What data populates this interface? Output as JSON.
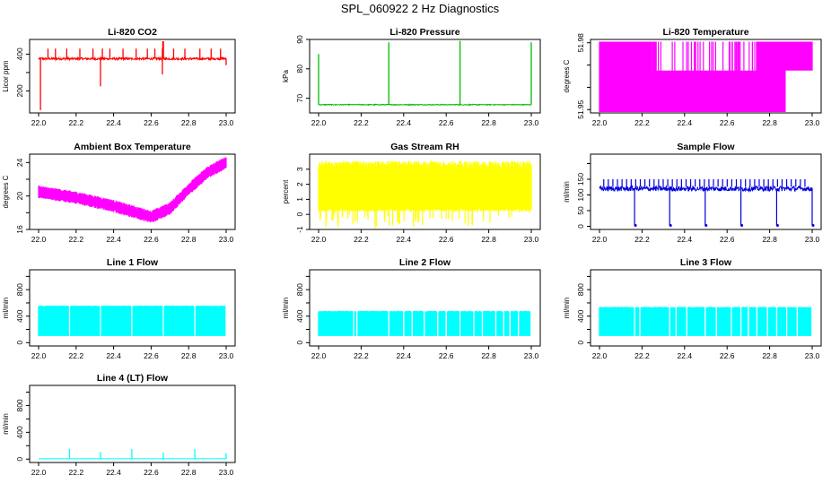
{
  "figure": {
    "title": "SPL_060922  2 Hz Diagnostics"
  },
  "chart_data": [
    {
      "type": "line",
      "title": "Li-820 CO2",
      "ylabel": "Licor ppm",
      "color": "#ff0000",
      "xlim": [
        22.0,
        23.0
      ],
      "ylim": [
        80,
        480
      ],
      "xticks": [
        "22.0",
        "22.2",
        "22.4",
        "22.6",
        "22.8",
        "23.0"
      ],
      "yticks": [
        {
          "value": 200,
          "label": "200"
        },
        {
          "value": 300,
          "label": "300"
        },
        {
          "value": 400,
          "label": "400"
        }
      ],
      "yticks_labeled": [
        "200",
        "400"
      ],
      "pattern": {
        "base": 375,
        "noise": 6,
        "spikes_up": [
          22.05,
          22.09,
          22.15,
          22.22,
          22.29,
          22.34,
          22.38,
          22.45,
          22.52,
          22.58,
          22.62,
          22.66,
          22.72,
          22.78,
          22.86,
          22.92,
          22.97
        ],
        "spike_up_to": 430,
        "spikes_down": [
          22.01,
          22.33,
          22.66,
          23.0
        ],
        "spike_down_to": [
          95,
          225,
          290,
          340
        ],
        "big_spike": {
          "x": 22.664,
          "to": 470
        }
      }
    },
    {
      "type": "line",
      "title": "Li-820 Pressure",
      "ylabel": "kPa",
      "color": "#00bb00",
      "xlim": [
        22.0,
        23.0
      ],
      "ylim": [
        65,
        90
      ],
      "xticks": [
        "22.0",
        "22.2",
        "22.4",
        "22.6",
        "22.8",
        "23.0"
      ],
      "yticks": [
        {
          "value": 70,
          "label": "70"
        },
        {
          "value": 80,
          "label": "80"
        },
        {
          "value": 90,
          "label": "90"
        }
      ],
      "pattern": {
        "base": 67.8,
        "noise": 0.15,
        "spikes_up": [
          22.0,
          22.33,
          22.665,
          23.0
        ],
        "spike_up_to": [
          85,
          89,
          89.5,
          89
        ]
      }
    },
    {
      "type": "line",
      "title": "Li-820 Temperature",
      "ylabel": "degrees C",
      "color": "#ff00ff",
      "xlim": [
        22.0,
        23.0
      ],
      "ylim": [
        51.9485,
        51.9815
      ],
      "xticks": [
        "22.0",
        "22.2",
        "22.4",
        "22.6",
        "22.8",
        "23.0"
      ],
      "yticks": [
        {
          "value": 51.95,
          "label": "51.95"
        },
        {
          "value": 51.96,
          "label": "51.96"
        },
        {
          "value": 51.97,
          "label": "51.97"
        },
        {
          "value": 51.98,
          "label": "51.98"
        }
      ],
      "yticks_labeled": [
        "51.95",
        "51.98"
      ],
      "levels": [
        51.9486,
        51.9675,
        51.9805
      ]
    },
    {
      "type": "line",
      "title": "Ambient Box Temperature",
      "ylabel": "degrees C",
      "color": "#ff00ff",
      "xlim": [
        22.0,
        23.0
      ],
      "ylim": [
        16,
        25
      ],
      "xticks": [
        "22.0",
        "22.2",
        "22.4",
        "22.6",
        "22.8",
        "23.0"
      ],
      "yticks": [
        {
          "value": 16,
          "label": "16"
        },
        {
          "value": 18,
          "label": "18"
        },
        {
          "value": 20,
          "label": "20"
        },
        {
          "value": 22,
          "label": "22"
        },
        {
          "value": 24,
          "label": "24"
        }
      ],
      "yticks_labeled": [
        "16",
        "20",
        "24"
      ],
      "trend": [
        [
          22.0,
          20.5
        ],
        [
          22.2,
          19.8
        ],
        [
          22.4,
          18.8
        ],
        [
          22.6,
          17.5
        ],
        [
          22.7,
          18.5
        ],
        [
          22.8,
          20.8
        ],
        [
          22.9,
          22.8
        ],
        [
          23.0,
          24.0
        ]
      ],
      "band": 0.9
    },
    {
      "type": "area",
      "title": "Gas Stream RH",
      "ylabel": "percent",
      "color": "#ffff00",
      "xlim": [
        22.0,
        23.0
      ],
      "ylim": [
        -1,
        4
      ],
      "xticks": [
        "22.0",
        "22.2",
        "22.4",
        "22.6",
        "22.8",
        "23.0"
      ],
      "yticks": [
        {
          "value": -1,
          "label": "-1"
        },
        {
          "value": 0,
          "label": "0"
        },
        {
          "value": 1,
          "label": "1"
        },
        {
          "value": 2,
          "label": "2"
        },
        {
          "value": 3,
          "label": "3"
        }
      ],
      "band": [
        0.3,
        3.2
      ]
    },
    {
      "type": "line",
      "title": "Sample Flow",
      "ylabel": "ml/min",
      "color": "#0000dd",
      "xlim": [
        22.0,
        23.0
      ],
      "ylim": [
        -10,
        230
      ],
      "xticks": [
        "22.0",
        "22.2",
        "22.4",
        "22.6",
        "22.8",
        "23.0"
      ],
      "yticks": [
        {
          "value": 0,
          "label": "0"
        },
        {
          "value": 50,
          "label": "50"
        },
        {
          "value": 100,
          "label": "100"
        },
        {
          "value": 150,
          "label": "150"
        },
        {
          "value": 200,
          "label": "200"
        }
      ],
      "yticks_labeled": [
        "0",
        "50",
        "100",
        "150"
      ],
      "pattern": {
        "base": 120,
        "noise": 8,
        "dips": [
          22.165,
          22.33,
          22.497,
          22.665,
          22.833,
          23.0
        ],
        "dip_to": 3
      }
    },
    {
      "type": "area",
      "title": "Line 1 Flow",
      "ylabel": "ml/min",
      "color": "#00ffff",
      "xlim": [
        22.0,
        23.0
      ],
      "ylim": [
        -50,
        1100
      ],
      "xticks": [
        "22.0",
        "22.2",
        "22.4",
        "22.6",
        "22.8",
        "23.0"
      ],
      "yticks": [
        {
          "value": 0,
          "label": "0"
        },
        {
          "value": 200,
          "label": "200"
        },
        {
          "value": 400,
          "label": "400"
        },
        {
          "value": 600,
          "label": "600"
        },
        {
          "value": 800,
          "label": "800"
        },
        {
          "value": 1000,
          "label": "1000"
        }
      ],
      "yticks_labeled": [
        "0",
        "400",
        "800"
      ],
      "band": [
        100,
        560
      ],
      "gaps": [
        22.165,
        22.33,
        22.497,
        22.665,
        22.833,
        23.0
      ]
    },
    {
      "type": "area",
      "title": "Line 2 Flow",
      "ylabel": "ml/min",
      "color": "#00ffff",
      "xlim": [
        22.0,
        23.0
      ],
      "ylim": [
        -50,
        1100
      ],
      "xticks": [
        "22.0",
        "22.2",
        "22.4",
        "22.6",
        "22.8",
        "23.0"
      ],
      "yticks": [
        {
          "value": 0,
          "label": "0"
        },
        {
          "value": 200,
          "label": "200"
        },
        {
          "value": 400,
          "label": "400"
        },
        {
          "value": 600,
          "label": "600"
        },
        {
          "value": 800,
          "label": "800"
        },
        {
          "value": 1000,
          "label": "1000"
        }
      ],
      "yticks_labeled": [
        "0",
        "400",
        "800"
      ],
      "band": [
        100,
        480
      ],
      "gaps": [
        22.165,
        22.18,
        22.33,
        22.4,
        22.44,
        22.497,
        22.56,
        22.6,
        22.665,
        22.73,
        22.77,
        22.833,
        22.87,
        22.9,
        22.94,
        23.0
      ]
    },
    {
      "type": "area",
      "title": "Line 3 Flow",
      "ylabel": "ml/min",
      "color": "#00ffff",
      "xlim": [
        22.0,
        23.0
      ],
      "ylim": [
        -50,
        1100
      ],
      "xticks": [
        "22.0",
        "22.2",
        "22.4",
        "22.6",
        "22.8",
        "23.0"
      ],
      "yticks": [
        {
          "value": 0,
          "label": "0"
        },
        {
          "value": 200,
          "label": "200"
        },
        {
          "value": 400,
          "label": "400"
        },
        {
          "value": 600,
          "label": "600"
        },
        {
          "value": 800,
          "label": "800"
        },
        {
          "value": 1000,
          "label": "1000"
        }
      ],
      "yticks_labeled": [
        "0",
        "400",
        "800"
      ],
      "band": [
        100,
        540
      ],
      "gaps": [
        22.165,
        22.19,
        22.33,
        22.36,
        22.41,
        22.497,
        22.55,
        22.62,
        22.665,
        22.7,
        22.74,
        22.79,
        22.833,
        22.88,
        22.93,
        23.0
      ]
    },
    {
      "type": "line",
      "title": "Line 4 (LT) Flow",
      "ylabel": "ml/min",
      "color": "#00ffff",
      "xlim": [
        22.0,
        23.0
      ],
      "ylim": [
        -50,
        1100
      ],
      "xticks": [
        "22.0",
        "22.2",
        "22.4",
        "22.6",
        "22.8",
        "23.0"
      ],
      "yticks": [
        {
          "value": 0,
          "label": "0"
        },
        {
          "value": 200,
          "label": "200"
        },
        {
          "value": 400,
          "label": "400"
        },
        {
          "value": 600,
          "label": "600"
        },
        {
          "value": 800,
          "label": "800"
        },
        {
          "value": 1000,
          "label": "1000"
        }
      ],
      "yticks_labeled": [
        "0",
        "400",
        "800"
      ],
      "pattern": {
        "base": 5,
        "noise": 2,
        "spikes_up": [
          22.165,
          22.33,
          22.497,
          22.665,
          22.833,
          23.0
        ],
        "spike_up_to": [
          150,
          110,
          150,
          100,
          150,
          90
        ]
      }
    }
  ]
}
